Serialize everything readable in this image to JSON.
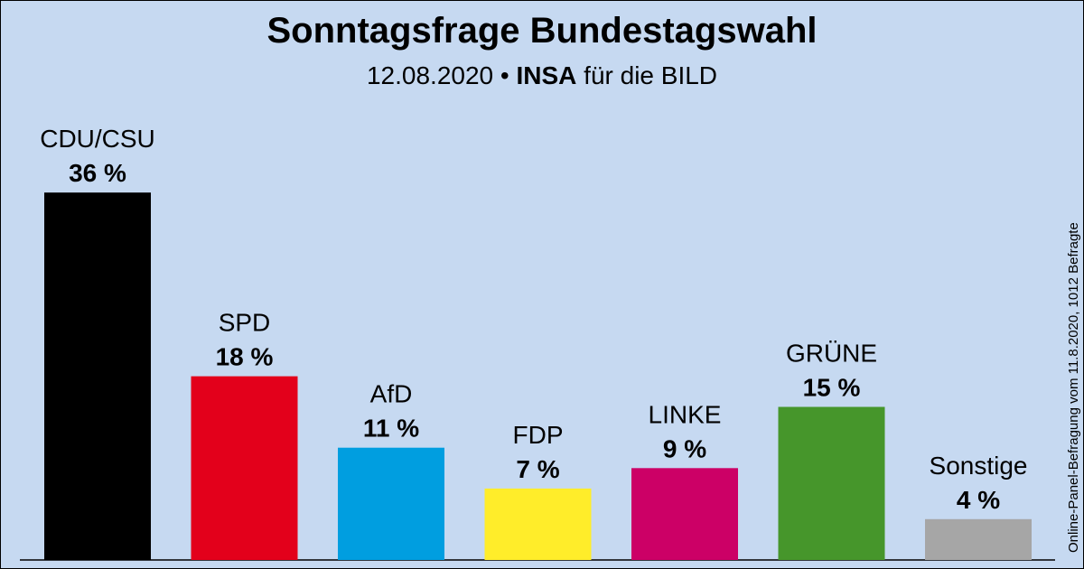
{
  "header": {
    "title": "Sonntagsfrage Bundestagswahl",
    "date": "12.08.2020",
    "separator": "•",
    "institute": "INSA",
    "client": "für die BILD"
  },
  "source_note": "Online-Panel-Befragung vom 11.8.2020, 1012 Befragte",
  "chart_data": {
    "type": "bar",
    "title": "Sonntagsfrage Bundestagswahl",
    "categories": [
      "CDU/CSU",
      "SPD",
      "AfD",
      "FDP",
      "LINKE",
      "GRÜNE",
      "Sonstige"
    ],
    "values": [
      36,
      18,
      11,
      7,
      9,
      15,
      4
    ],
    "value_labels": [
      "36 %",
      "18 %",
      "11 %",
      "7 %",
      "9 %",
      "15 %",
      "4 %"
    ],
    "colors": [
      "#000000",
      "#e3001b",
      "#009ee0",
      "#ffed2a",
      "#cc0066",
      "#46962b",
      "#a6a6a6"
    ],
    "unit": "%",
    "ylim": [
      0,
      40
    ],
    "grid": false,
    "legend": "none"
  }
}
